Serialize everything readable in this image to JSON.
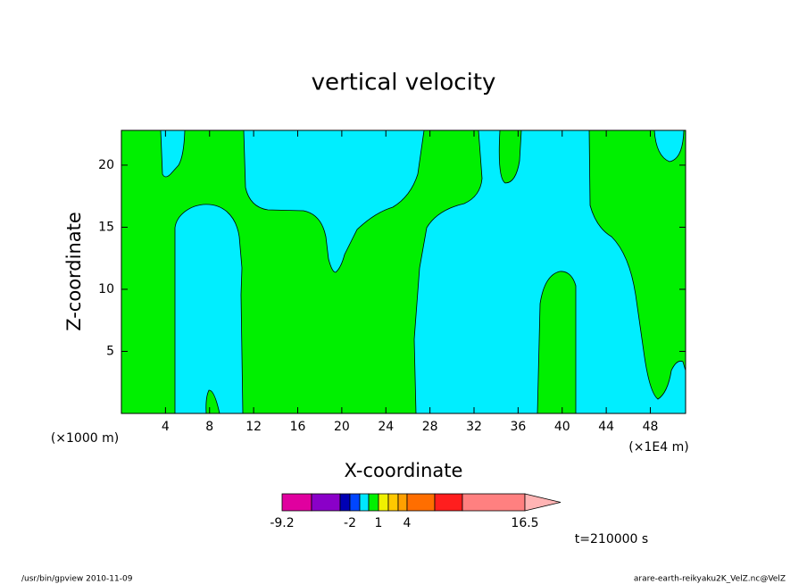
{
  "chart_data": {
    "type": "contour",
    "title": "vertical velocity",
    "x_label": "X-coordinate",
    "y_label": "Z-coordinate",
    "x_unit_left": "(×1000 m)",
    "x_unit_right": "(×1E4 m)",
    "xlim": [
      0,
      51.2
    ],
    "xticks": [
      4,
      8,
      12,
      16,
      20,
      24,
      28,
      32,
      36,
      40,
      44,
      48
    ],
    "ylim": [
      0,
      22.8
    ],
    "yticks": [
      5,
      10,
      15,
      20
    ],
    "colorbar": {
      "colors": [
        "#e0009f",
        "#8a00c8",
        "#0000b4",
        "#0046ff",
        "#00e6ff",
        "#00f000",
        "#f0f000",
        "#ffc800",
        "#ffa000",
        "#ff6e00",
        "#ff1e1e",
        "#ff8080",
        "#ffb4b4"
      ],
      "ticks": [
        -9.2,
        -2,
        1,
        4,
        16.5
      ]
    },
    "annotation": "t=210000 s",
    "footer_left": "/usr/bin/gpview  2010-11-09",
    "footer_right": "arare-earth-reikyaku2K_VelZ.nc@VelZ"
  }
}
